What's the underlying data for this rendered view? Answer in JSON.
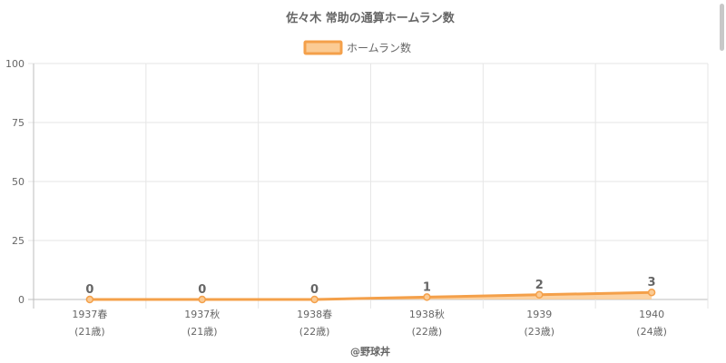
{
  "chart_data": {
    "type": "area",
    "title": "佐々木 常助の通算ホームラン数",
    "categories": [
      {
        "label": "1937春",
        "sub": "(21歳)"
      },
      {
        "label": "1937秋",
        "sub": "(21歳)"
      },
      {
        "label": "1938春",
        "sub": "(22歳)"
      },
      {
        "label": "1938秋",
        "sub": "(22歳)"
      },
      {
        "label": "1939",
        "sub": "(23歳)"
      },
      {
        "label": "1940",
        "sub": "(24歳)"
      }
    ],
    "series": [
      {
        "name": "ホームラン数",
        "values": [
          0,
          0,
          0,
          1,
          2,
          3
        ],
        "color": "#f4a04a",
        "fill": "#fbcb94"
      }
    ],
    "ylim": [
      0,
      100
    ],
    "yticks": [
      "0",
      "25",
      "50",
      "75",
      "100"
    ],
    "grid": true,
    "legend": "top-center",
    "credit": "@野球丼"
  }
}
